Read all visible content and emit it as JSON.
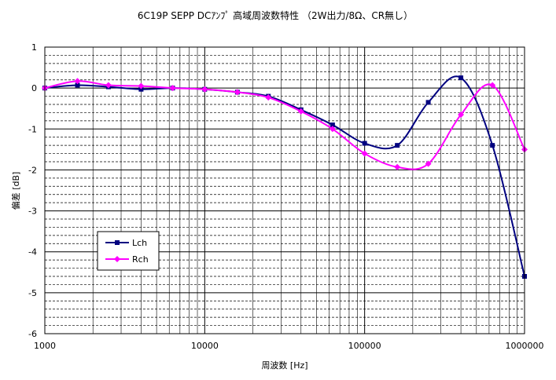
{
  "chart_data": {
    "type": "line",
    "title": "6C19P SEPP DCｱﾝﾌﾟ 高域周波数特性 （2W出力/8Ω、CR無し）",
    "xlabel": "周波数 [Hz]",
    "ylabel": "偏差 [dB]",
    "xscale": "log",
    "xlim": [
      1000,
      1000000
    ],
    "ylim": [
      -6,
      1
    ],
    "xticks": [
      1000,
      10000,
      100000,
      1000000
    ],
    "xtick_labels": [
      "1000",
      "10000",
      "100000",
      "1000000"
    ],
    "yticks": [
      -6,
      -5,
      -4,
      -3,
      -2,
      -1,
      0,
      1
    ],
    "ytick_labels": [
      "-6",
      "-5",
      "-4",
      "-3",
      "-2",
      "-1",
      "0",
      "1"
    ],
    "grid": true,
    "legend_position": "lower-left",
    "series": [
      {
        "name": "Lch",
        "color": "#000080",
        "marker": "square",
        "x": [
          1000,
          1600,
          2500,
          4000,
          6300,
          10000,
          16000,
          25000,
          40000,
          63000,
          100000,
          160000,
          250000,
          400000,
          630000,
          1000000
        ],
        "y": [
          0,
          0.07,
          0.03,
          -0.03,
          0,
          -0.03,
          -0.1,
          -0.2,
          -0.53,
          -0.9,
          -1.35,
          -1.4,
          -0.35,
          0.25,
          -1.4,
          -4.6
        ]
      },
      {
        "name": "Rch",
        "color": "#ff00ff",
        "marker": "diamond",
        "x": [
          1000,
          1600,
          2500,
          4000,
          6300,
          10000,
          16000,
          25000,
          40000,
          63000,
          100000,
          160000,
          250000,
          400000,
          630000,
          1000000
        ],
        "y": [
          0,
          0.17,
          0.07,
          0.05,
          0,
          -0.03,
          -0.1,
          -0.23,
          -0.57,
          -1.0,
          -1.6,
          -1.93,
          -1.85,
          -0.65,
          0.07,
          -1.5
        ]
      }
    ]
  }
}
